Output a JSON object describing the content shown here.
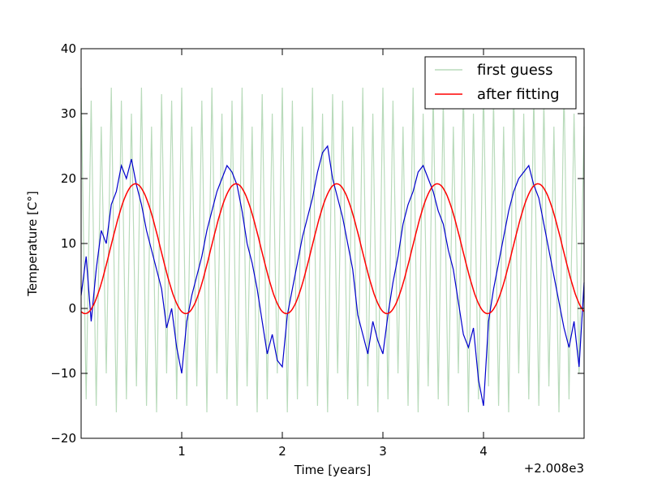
{
  "chart_data": {
    "type": "line",
    "title": "",
    "xlabel": "Time [years]",
    "ylabel": "Temperature [C°]",
    "x_offset_label": "+2.008e3",
    "xlim": [
      2008.0,
      2013.0
    ],
    "ylim": [
      -20,
      40
    ],
    "x_ticks": [
      2009,
      2010,
      2011,
      2012
    ],
    "x_tick_labels": [
      "1",
      "2",
      "3",
      "4"
    ],
    "y_ticks": [
      -20,
      -10,
      0,
      10,
      20,
      30,
      40
    ],
    "y_tick_labels": [
      "−20",
      "−10",
      "0",
      "10",
      "20",
      "30",
      "40"
    ],
    "grid": false,
    "legend_position": "top-right",
    "series": [
      {
        "name": "first guess",
        "color": "#b9dbbb",
        "style": "dense oscillating band",
        "x": [
          2008.0,
          2008.05,
          2008.1,
          2008.15,
          2008.2,
          2008.25,
          2008.3,
          2008.35,
          2008.4,
          2008.45,
          2008.5,
          2008.55,
          2008.6,
          2008.65,
          2008.7,
          2008.75,
          2008.8,
          2008.85,
          2008.9,
          2008.95,
          2009.0,
          2009.05,
          2009.1,
          2009.15,
          2009.2,
          2009.25,
          2009.3,
          2009.35,
          2009.4,
          2009.45,
          2009.5,
          2009.55,
          2009.6,
          2009.65,
          2009.7,
          2009.75,
          2009.8,
          2009.85,
          2009.9,
          2009.95,
          2010.0,
          2010.05,
          2010.1,
          2010.15,
          2010.2,
          2010.25,
          2010.3,
          2010.35,
          2010.4,
          2010.45,
          2010.5,
          2010.55,
          2010.6,
          2010.65,
          2010.7,
          2010.75,
          2010.8,
          2010.85,
          2010.9,
          2010.95,
          2011.0,
          2011.05,
          2011.1,
          2011.15,
          2011.2,
          2011.25,
          2011.3,
          2011.35,
          2011.4,
          2011.45,
          2011.5,
          2011.55,
          2011.6,
          2011.65,
          2011.7,
          2011.75,
          2011.8,
          2011.85,
          2011.9,
          2011.95,
          2012.0,
          2012.05,
          2012.1,
          2012.15,
          2012.2,
          2012.25,
          2012.3,
          2012.35,
          2012.4,
          2012.45,
          2012.5,
          2012.55,
          2012.6,
          2012.65,
          2012.7,
          2012.75,
          2012.8,
          2012.85,
          2012.9,
          2012.95,
          2013.0
        ],
        "y": [
          34,
          -14,
          32,
          -15,
          28,
          -10,
          34,
          -16,
          32,
          -14,
          30,
          -12,
          34,
          -15,
          28,
          -16,
          33,
          -10,
          32,
          -14,
          34,
          -15,
          28,
          -12,
          32,
          -16,
          34,
          -10,
          30,
          -14,
          32,
          -15,
          34,
          -12,
          28,
          -16,
          33,
          -14,
          30,
          -10,
          34,
          -16,
          32,
          -14,
          28,
          -12,
          34,
          -15,
          30,
          -16,
          33,
          -10,
          32,
          -14,
          28,
          -15,
          34,
          -12,
          30,
          -16,
          34,
          -14,
          32,
          -10,
          28,
          -15,
          34,
          -16,
          30,
          -12,
          33,
          -14,
          32,
          -15,
          28,
          -10,
          34,
          -16,
          30,
          -14,
          34,
          -12,
          32,
          -15,
          28,
          -16,
          34,
          -10,
          30,
          -14,
          33,
          -15,
          32,
          -12,
          28,
          -16,
          34,
          -14,
          30,
          -10,
          28
        ]
      },
      {
        "name": "",
        "color": "#0000cc",
        "style": "noisy data",
        "x": [
          2008.0,
          2008.05,
          2008.1,
          2008.15,
          2008.2,
          2008.25,
          2008.3,
          2008.35,
          2008.4,
          2008.45,
          2008.5,
          2008.55,
          2008.6,
          2008.65,
          2008.7,
          2008.75,
          2008.8,
          2008.85,
          2008.9,
          2008.95,
          2009.0,
          2009.05,
          2009.1,
          2009.15,
          2009.2,
          2009.25,
          2009.3,
          2009.35,
          2009.4,
          2009.45,
          2009.5,
          2009.55,
          2009.6,
          2009.65,
          2009.7,
          2009.75,
          2009.8,
          2009.85,
          2009.9,
          2009.95,
          2010.0,
          2010.05,
          2010.1,
          2010.15,
          2010.2,
          2010.25,
          2010.3,
          2010.35,
          2010.4,
          2010.45,
          2010.5,
          2010.55,
          2010.6,
          2010.65,
          2010.7,
          2010.75,
          2010.8,
          2010.85,
          2010.9,
          2010.95,
          2011.0,
          2011.05,
          2011.1,
          2011.15,
          2011.2,
          2011.25,
          2011.3,
          2011.35,
          2011.4,
          2011.45,
          2011.5,
          2011.55,
          2011.6,
          2011.65,
          2011.7,
          2011.75,
          2011.8,
          2011.85,
          2011.9,
          2011.95,
          2012.0,
          2012.05,
          2012.1,
          2012.15,
          2012.2,
          2012.25,
          2012.3,
          2012.35,
          2012.4,
          2012.45,
          2012.5,
          2012.55,
          2012.6,
          2012.65,
          2012.7,
          2012.75,
          2012.8,
          2012.85,
          2012.9,
          2012.95,
          2013.0
        ],
        "y": [
          2,
          8,
          -2,
          6,
          12,
          10,
          16,
          18,
          22,
          20,
          23,
          19,
          16,
          12,
          9,
          6,
          3,
          -3,
          0,
          -6,
          -10,
          -2,
          2,
          5,
          8,
          12,
          15,
          18,
          20,
          22,
          21,
          19,
          15,
          10,
          7,
          3,
          -2,
          -7,
          -4,
          -8,
          -9,
          -1,
          3,
          7,
          11,
          14,
          17,
          21,
          24,
          25,
          20,
          17,
          14,
          10,
          6,
          -1,
          -4,
          -7,
          -2,
          -5,
          -7,
          -1,
          4,
          8,
          13,
          16,
          18,
          21,
          22,
          20,
          18,
          15,
          13,
          9,
          6,
          1,
          -4,
          -6,
          -3,
          -11,
          -15,
          -2,
          3,
          7,
          11,
          15,
          18,
          20,
          21,
          22,
          19,
          17,
          13,
          9,
          5,
          1,
          -3,
          -6,
          -2,
          -9,
          4
        ]
      },
      {
        "name": "after fitting",
        "color": "#ff0000",
        "style": "sine fit",
        "mean": 9.2,
        "amplitude": 10.0,
        "period_years": 1.0,
        "peak_x": 2008.54
      }
    ]
  }
}
